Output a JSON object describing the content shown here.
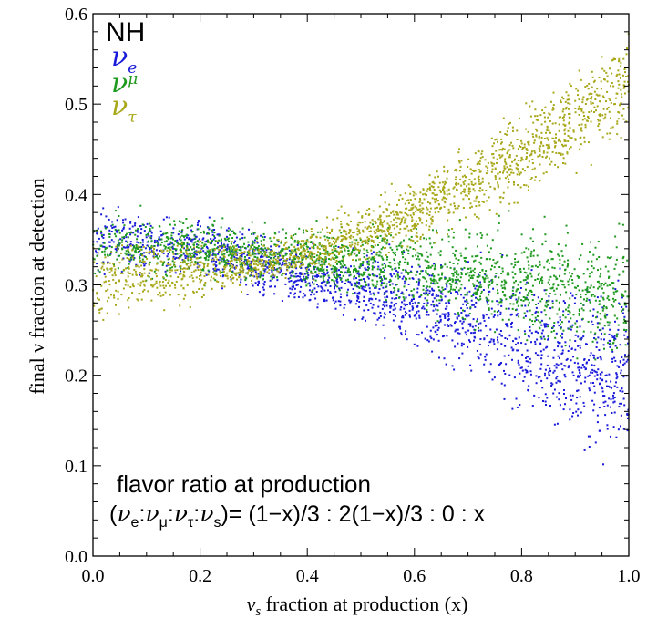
{
  "chart_data": {
    "type": "scatter",
    "title": "",
    "xlabel": "ν_s fraction at production (x)",
    "xlabel_parts": {
      "greek": "ν",
      "sub": "s",
      "rest": " fraction at production (x)"
    },
    "ylabel": "final ν fraction at detection",
    "xlim": [
      0.0,
      1.0
    ],
    "ylim": [
      0.0,
      0.6
    ],
    "xticks": [
      "0.0",
      "0.2",
      "0.4",
      "0.6",
      "0.8",
      "1.0"
    ],
    "yticks": [
      "0.0",
      "0.1",
      "0.2",
      "0.3",
      "0.4",
      "0.5",
      "0.6"
    ],
    "grid": false,
    "legend_title": "NH",
    "legend_placement": "top-left",
    "series": [
      {
        "name": "ν_e",
        "symbol": "ν",
        "sub": "e",
        "color": "#1a1adb",
        "band_center": [
          [
            0.0,
            0.35
          ],
          [
            0.2,
            0.34
          ],
          [
            0.4,
            0.31
          ],
          [
            0.6,
            0.28
          ],
          [
            0.8,
            0.24
          ],
          [
            1.0,
            0.2
          ]
        ],
        "band_halfwidth": [
          [
            0.0,
            0.035
          ],
          [
            0.4,
            0.03
          ],
          [
            0.7,
            0.06
          ],
          [
            1.0,
            0.1
          ]
        ]
      },
      {
        "name": "ν_μ",
        "symbol": "ν",
        "sub": "μ",
        "color": "#1f9a1f",
        "band_center": [
          [
            0.0,
            0.345
          ],
          [
            0.2,
            0.34
          ],
          [
            0.4,
            0.33
          ],
          [
            0.6,
            0.32
          ],
          [
            0.8,
            0.3
          ],
          [
            1.0,
            0.285
          ]
        ],
        "band_halfwidth": [
          [
            0.0,
            0.035
          ],
          [
            0.4,
            0.03
          ],
          [
            0.7,
            0.05
          ],
          [
            1.0,
            0.08
          ]
        ]
      },
      {
        "name": "ν_τ",
        "symbol": "ν",
        "sub": "τ",
        "color": "#a8a81a",
        "band_center": [
          [
            0.0,
            0.305
          ],
          [
            0.2,
            0.315
          ],
          [
            0.4,
            0.335
          ],
          [
            0.6,
            0.38
          ],
          [
            0.8,
            0.445
          ],
          [
            1.0,
            0.52
          ]
        ],
        "band_halfwidth": [
          [
            0.0,
            0.045
          ],
          [
            0.3,
            0.025
          ],
          [
            0.5,
            0.03
          ],
          [
            0.8,
            0.05
          ],
          [
            1.0,
            0.06
          ]
        ]
      }
    ],
    "annotation": {
      "line1": "flavor ratio at production",
      "line2_parts": [
        "(",
        "ν",
        "e",
        ":",
        "ν",
        "μ",
        ":",
        "ν",
        "τ",
        ":",
        "ν",
        "s",
        ")= (1−x)/3 : 2(1−x)/3 : 0 : x"
      ]
    }
  }
}
